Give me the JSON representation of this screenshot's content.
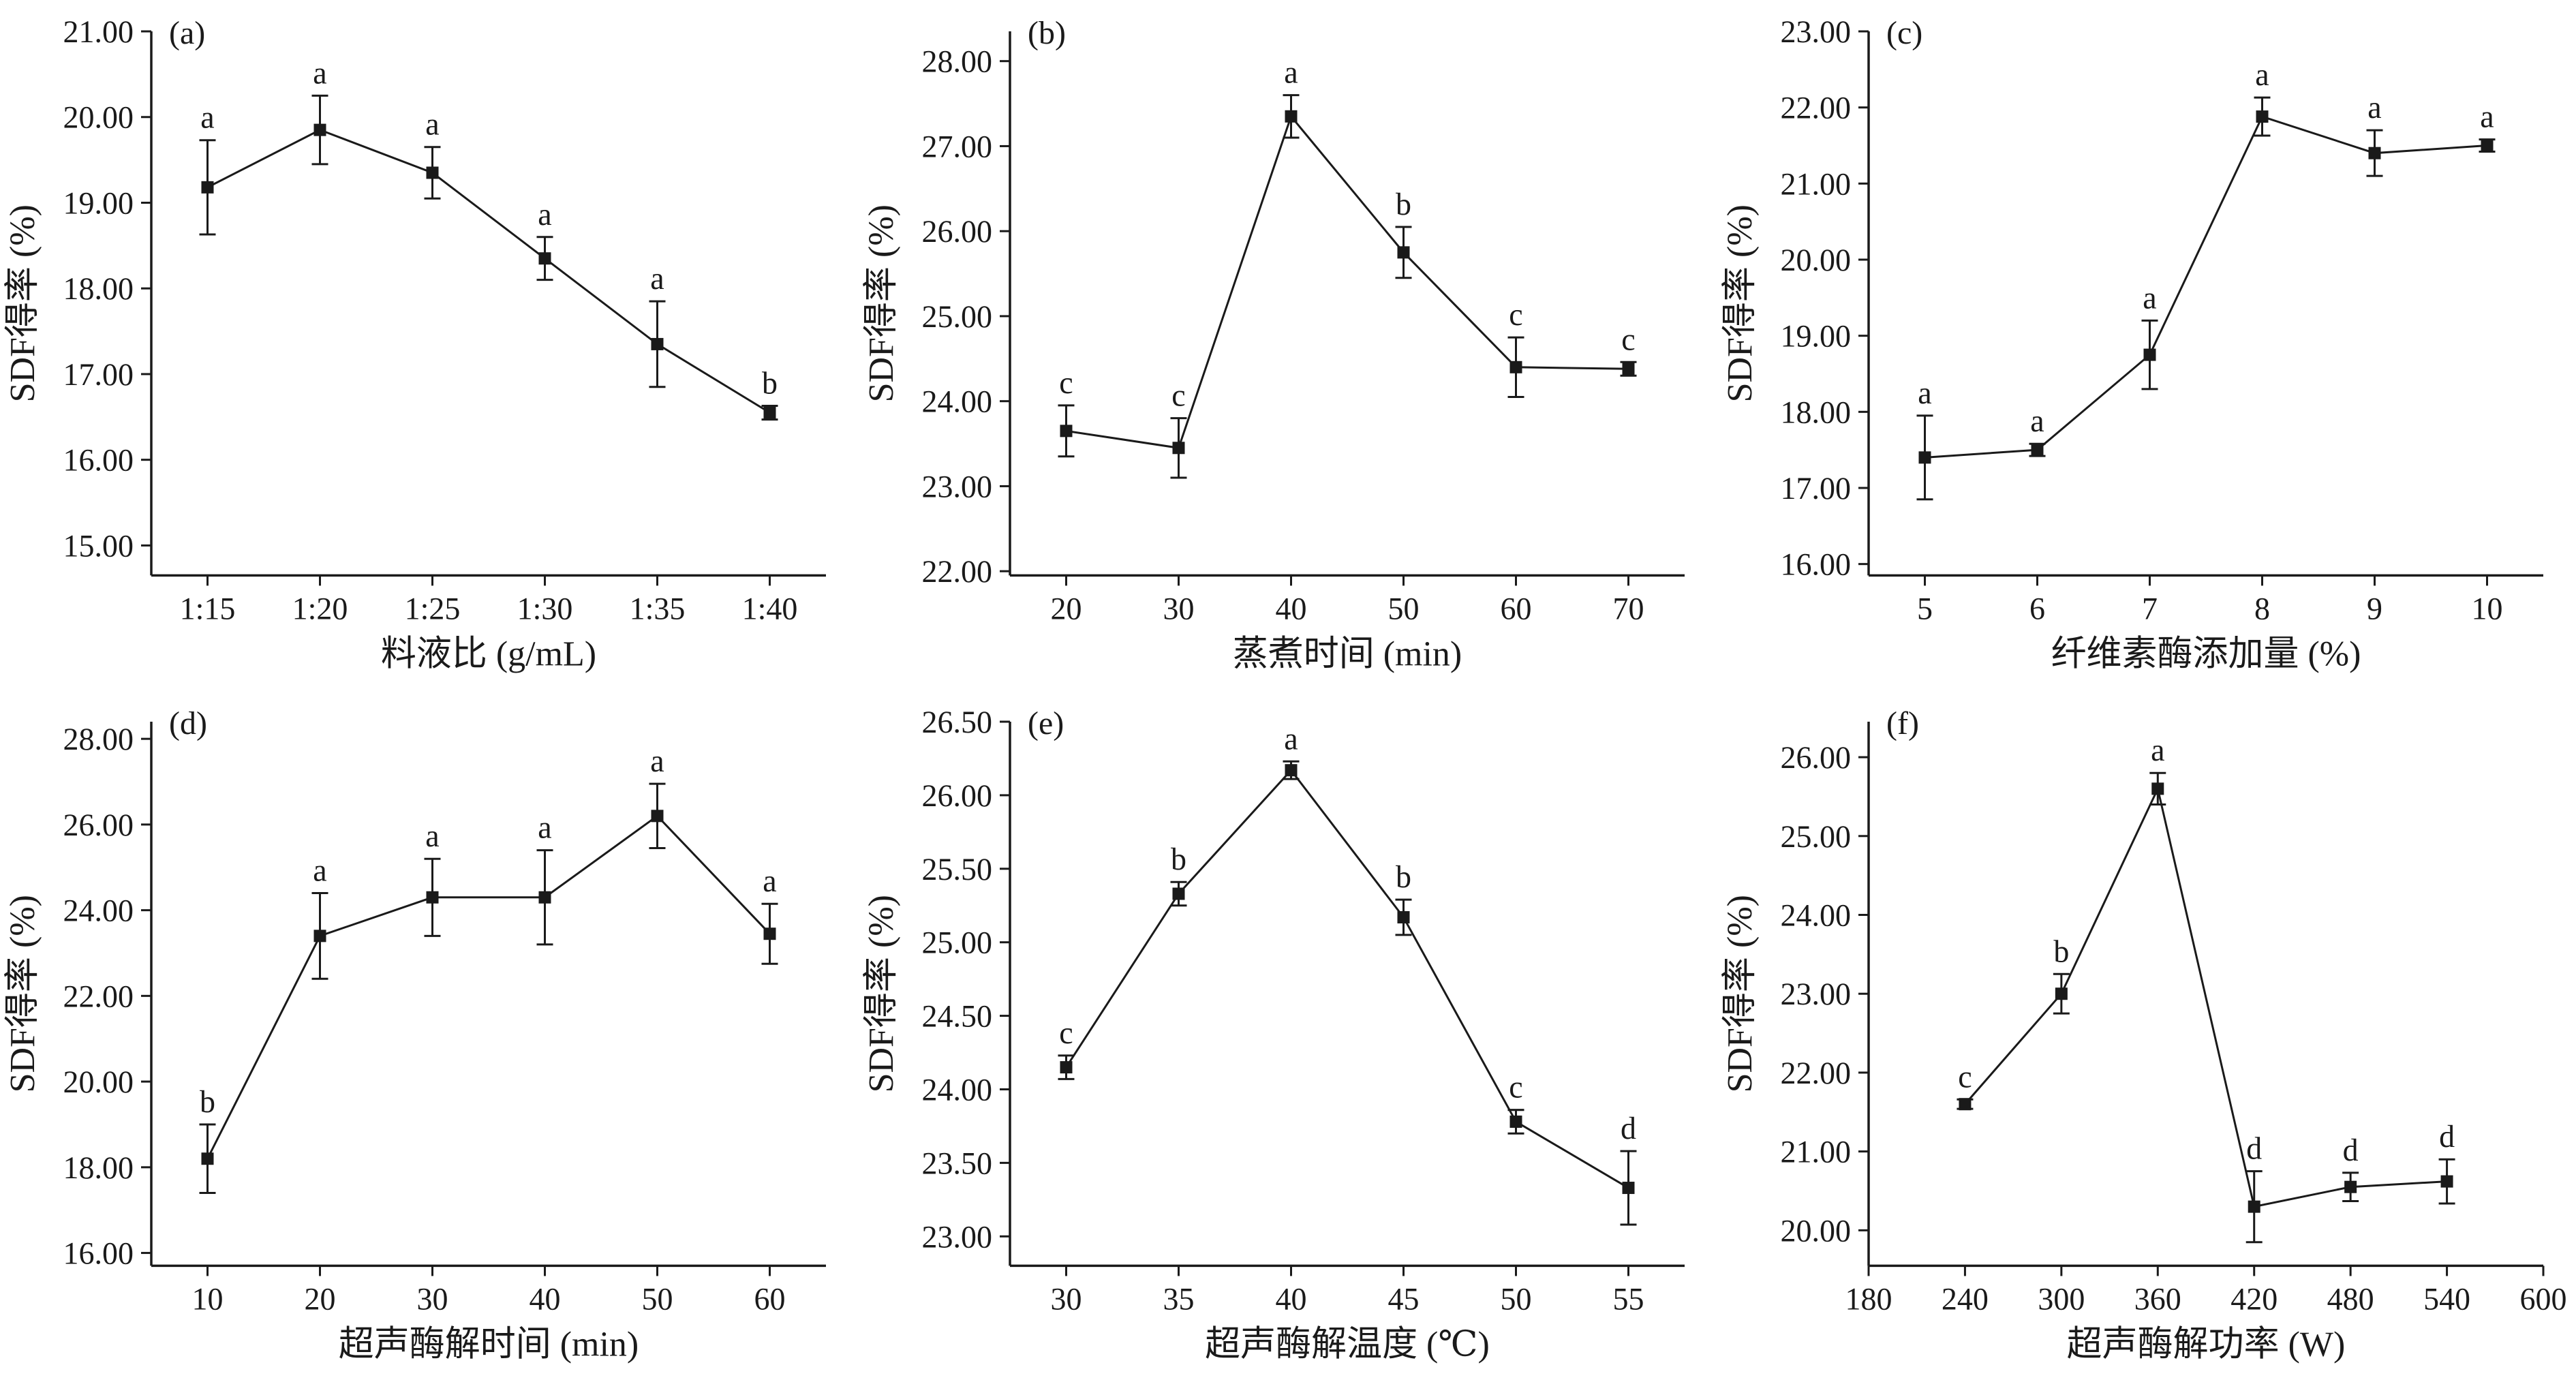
{
  "figure": {
    "background": "#ffffff",
    "ink": "#1a1a1a",
    "marker": "square"
  },
  "chart_data": [
    {
      "panel": "(a)",
      "type": "line",
      "title": "",
      "ylabel": "SDF得率 (%)",
      "xlabel": "料液比 (g/mL)",
      "x_type": "category",
      "categories": [
        "1:15",
        "1:20",
        "1:25",
        "1:30",
        "1:35",
        "1:40"
      ],
      "values": [
        19.18,
        19.85,
        19.35,
        18.35,
        17.35,
        16.55
      ],
      "errors": [
        0.55,
        0.4,
        0.3,
        0.25,
        0.5,
        0.08
      ],
      "point_labels": [
        "a",
        "a",
        "a",
        "a",
        "a",
        "b"
      ],
      "ylim": [
        14.65,
        21.0
      ],
      "yticks": [
        15,
        16,
        17,
        18,
        19,
        20,
        21
      ],
      "ytick_decimals": 2,
      "grid": false,
      "legend": "none"
    },
    {
      "panel": "(b)",
      "type": "line",
      "title": "",
      "ylabel": "SDF得率 (%)",
      "xlabel": "蒸煮时间 (min)",
      "x_type": "category",
      "categories": [
        "20",
        "30",
        "40",
        "50",
        "60",
        "70"
      ],
      "values": [
        23.65,
        23.45,
        27.35,
        25.75,
        24.4,
        24.38
      ],
      "errors": [
        0.3,
        0.35,
        0.25,
        0.3,
        0.35,
        0.08
      ],
      "point_labels": [
        "c",
        "c",
        "a",
        "b",
        "c",
        "c"
      ],
      "ylim": [
        21.95,
        28.35
      ],
      "yticks": [
        22,
        23,
        24,
        25,
        26,
        27,
        28
      ],
      "ytick_decimals": 2,
      "grid": false,
      "legend": "none"
    },
    {
      "panel": "(c)",
      "type": "line",
      "title": "",
      "ylabel": "SDF得率 (%)",
      "xlabel": "纤维素酶添加量 (%)",
      "x_type": "category",
      "categories": [
        "5",
        "6",
        "7",
        "8",
        "9",
        "10"
      ],
      "values": [
        17.4,
        17.5,
        18.75,
        21.88,
        21.4,
        21.5
      ],
      "errors": [
        0.55,
        0.08,
        0.45,
        0.25,
        0.3,
        0.08
      ],
      "point_labels": [
        "a",
        "a",
        "a",
        "a",
        "a",
        "a"
      ],
      "ylim": [
        15.85,
        23.0
      ],
      "yticks": [
        16,
        17,
        18,
        19,
        20,
        21,
        22,
        23
      ],
      "ytick_decimals": 2,
      "grid": false,
      "legend": "none"
    },
    {
      "panel": "(d)",
      "type": "line",
      "title": "",
      "ylabel": "SDF得率 (%)",
      "xlabel": "超声酶解时间 (min)",
      "x_type": "category",
      "categories": [
        "10",
        "20",
        "30",
        "40",
        "50",
        "60"
      ],
      "values": [
        18.2,
        23.4,
        24.3,
        24.3,
        26.2,
        23.45
      ],
      "errors": [
        0.8,
        1.0,
        0.9,
        1.1,
        0.75,
        0.7
      ],
      "point_labels": [
        "b",
        "a",
        "a",
        "a",
        "a",
        "a"
      ],
      "ylim": [
        15.7,
        28.4
      ],
      "yticks": [
        16,
        18,
        20,
        22,
        24,
        26,
        28
      ],
      "ytick_decimals": 2,
      "grid": false,
      "legend": "none"
    },
    {
      "panel": "(e)",
      "type": "line",
      "title": "",
      "ylabel": "SDF得率 (%)",
      "xlabel": "超声酶解温度 (℃)",
      "x_type": "category",
      "categories": [
        "30",
        "35",
        "40",
        "45",
        "50",
        "55"
      ],
      "values": [
        24.15,
        25.33,
        26.17,
        25.17,
        23.78,
        23.33
      ],
      "errors": [
        0.08,
        0.08,
        0.06,
        0.12,
        0.08,
        0.25
      ],
      "point_labels": [
        "c",
        "b",
        "a",
        "b",
        "c",
        "d"
      ],
      "ylim": [
        22.8,
        26.5
      ],
      "yticks": [
        23.0,
        23.5,
        24.0,
        24.5,
        25.0,
        25.5,
        26.0,
        26.5
      ],
      "ytick_decimals": 2,
      "grid": false,
      "legend": "none"
    },
    {
      "panel": "(f)",
      "type": "line",
      "title": "",
      "ylabel": "SDF得率 (%)",
      "xlabel": "超声酶解功率 (W)",
      "x_type": "numeric",
      "x": [
        240,
        300,
        360,
        420,
        480,
        540
      ],
      "xlim": [
        180,
        600
      ],
      "xticks": [
        180,
        240,
        300,
        360,
        420,
        480,
        540,
        600
      ],
      "values": [
        21.6,
        23.0,
        25.6,
        20.3,
        20.55,
        20.62
      ],
      "errors": [
        0.06,
        0.25,
        0.2,
        0.45,
        0.18,
        0.28
      ],
      "point_labels": [
        "c",
        "b",
        "a",
        "d",
        "d",
        "d"
      ],
      "ylim": [
        19.55,
        26.45
      ],
      "yticks": [
        20,
        21,
        22,
        23,
        24,
        25,
        26
      ],
      "ytick_decimals": 2,
      "grid": false,
      "legend": "none"
    }
  ]
}
